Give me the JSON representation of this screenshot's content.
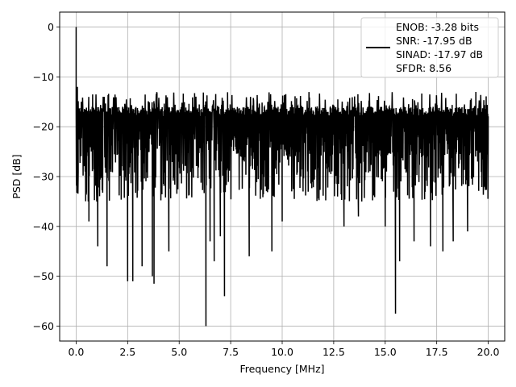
{
  "chart_data": {
    "type": "line",
    "xlabel": "Frequency [MHz]",
    "ylabel": "PSD [dB]",
    "xlim": [
      -0.8,
      20.8
    ],
    "ylim": [
      -63,
      3
    ],
    "grid": true,
    "xticks": [
      0.0,
      2.5,
      5.0,
      7.5,
      10.0,
      12.5,
      15.0,
      17.5,
      20.0
    ],
    "xtick_labels": [
      "0.0",
      "2.5",
      "5.0",
      "7.5",
      "10.0",
      "12.5",
      "15.0",
      "17.5",
      "20.0"
    ],
    "yticks": [
      0,
      -10,
      -20,
      -30,
      -40,
      -50,
      -60
    ],
    "ytick_labels": [
      "0",
      "−10",
      "−20",
      "−30",
      "−40",
      "−50",
      "−60"
    ],
    "legend": {
      "placement": "upper right",
      "entries": [
        "ENOB: -3.28 bits",
        "SNR: -17.95 dB",
        "SINAD: -17.97 dB",
        "SFDR: 8.56"
      ]
    },
    "series": [
      {
        "color": "#000000",
        "noise_floor_db": -23,
        "peak_band_db": [
          -13,
          -16
        ],
        "x": [
          0.0,
          0.02,
          0.04,
          0.06,
          0.1,
          0.25,
          0.5,
          0.62,
          1.0,
          1.05,
          1.5,
          2.5,
          2.75,
          3.2,
          3.7,
          3.78,
          4.5,
          6.3,
          6.5,
          6.7,
          7.0,
          7.2,
          8.4,
          9.5,
          10.0,
          13.0,
          13.7,
          15.0,
          15.5,
          15.7,
          16.4,
          17.2,
          17.8,
          18.3,
          19.0,
          19.8,
          20.0
        ],
        "y": [
          0,
          -26,
          -17,
          -12,
          -29,
          -15,
          -33,
          -39,
          -35,
          -44,
          -48,
          -51,
          -51,
          -48,
          -50,
          -51.5,
          -45,
          -60,
          -43,
          -47,
          -42,
          -54,
          -46,
          -45,
          -39,
          -40,
          -38,
          -40,
          -57.5,
          -47,
          -43,
          -44,
          -45,
          -43,
          -41,
          -32,
          -22
        ]
      }
    ]
  }
}
